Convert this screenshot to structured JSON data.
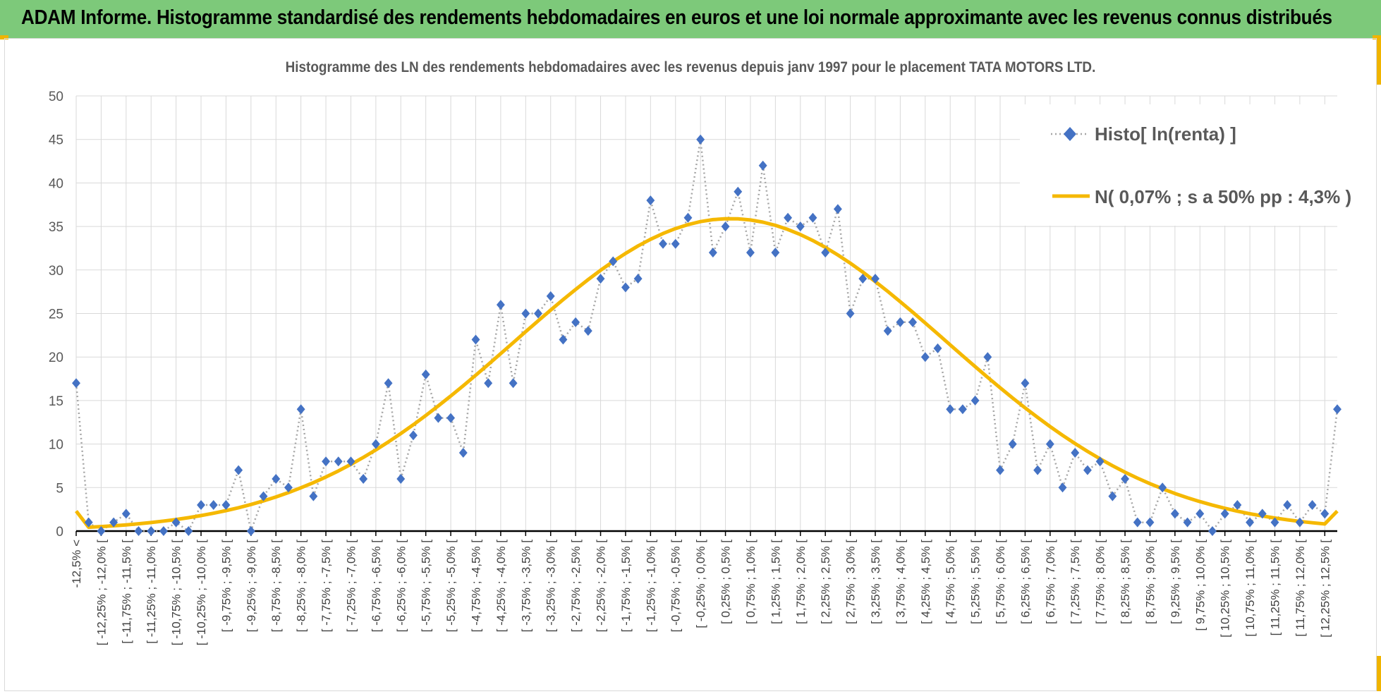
{
  "banner": {
    "title": "ADAM Informe. Histogramme standardisé des rendements hebdomadaires en euros et une loi normale approximante avec les revenus connus distribués"
  },
  "colors": {
    "banner_bg": "#7dc97a",
    "accent_corner": "#f0b400",
    "histo_marker": "#4472c4",
    "histo_line": "#a6a6a6",
    "normal_curve": "#f5b800",
    "grid": "#d9d9d9"
  },
  "chart_data": {
    "type": "line",
    "title": "Histogramme des LN des rendements hebdomadaires avec les revenus depuis janv 1997 pour le placement TATA MOTORS LTD.",
    "xlabel": "",
    "ylabel": "",
    "ylim": [
      0,
      50
    ],
    "yticks": [
      0,
      5,
      10,
      15,
      20,
      25,
      30,
      35,
      40,
      45,
      50
    ],
    "grid": true,
    "legend_position": "top-right",
    "x_labels_shown": [
      "-12,5% <",
      "[ -12,25% ; -12,0% [",
      "[ -11,75% ; -11,5% [",
      "[ -11,25% ; -11,0% [",
      "[ -10,75% ; -10,5% [",
      "[ -10,25% ; -10,0% [",
      "[ -9,75% ; -9,5% [",
      "[ -9,25% ; -9,0% [",
      "[ -8,75% ; -8,5% [",
      "[ -8,25% ; -8,0% [",
      "[ -7,75% ; -7,5% [",
      "[ -7,25% ; -7,0% [",
      "[ -6,75% ; -6,5% [",
      "[ -6,25% ; -6,0% [",
      "[ -5,75% ; -5,5% [",
      "[ -5,25% ; -5,0% [",
      "[ -4,75% ; -4,5% [",
      "[ -4,25% ; -4,0% [",
      "[ -3,75% ; -3,5% [",
      "[ -3,25% ; -3,0% [",
      "[ -2,75% ; -2,5% [",
      "[ -2,25% ; -2,0% [",
      "[ -1,75% ; -1,5% [",
      "[ -1,25% ; -1,0% [",
      "[ -0,75% ; -0,5% [",
      "[ -0,25% ; 0,0% [",
      "[ 0,25% ; 0,5% [",
      "[ 0,75% ; 1,0% [",
      "[ 1,25% ; 1,5% [",
      "[ 1,75% ; 2,0% [",
      "[ 2,25% ; 2,5% [",
      "[ 2,75% ; 3,0% [",
      "[ 3,25% ; 3,5% [",
      "[ 3,75% ; 4,0% [",
      "[ 4,25% ; 4,5% [",
      "[ 4,75% ; 5,0% [",
      "[ 5,25% ; 5,5% [",
      "[ 5,75% ; 6,0% [",
      "[ 6,25% ; 6,5% [",
      "[ 6,75% ; 7,0% [",
      "[ 7,25% ; 7,5% [",
      "[ 7,75% ; 8,0% [",
      "[ 8,25% ; 8,5% [",
      "[ 8,75% ; 9,0% [",
      "[ 9,25% ; 9,5% [",
      "[ 9,75% ; 10,0% [",
      "[ 10,25% ; 10,5% [",
      "[ 10,75% ; 11,0% [",
      "[ 11,25% ; 11,5% [",
      "[ 11,75% ; 12,0% [",
      "[ 12,25% ; 12,5% ["
    ],
    "series": [
      {
        "name": "Histo[ ln(renta) ]",
        "style": "dotted-line-diamond-markers",
        "values": [
          17,
          1,
          0,
          1,
          2,
          0,
          0,
          0,
          1,
          0,
          3,
          3,
          3,
          7,
          0,
          4,
          6,
          5,
          14,
          4,
          8,
          8,
          8,
          6,
          10,
          17,
          6,
          11,
          18,
          13,
          13,
          9,
          22,
          17,
          26,
          17,
          25,
          25,
          27,
          22,
          24,
          23,
          29,
          31,
          28,
          29,
          38,
          33,
          33,
          36,
          45,
          32,
          35,
          39,
          32,
          42,
          32,
          36,
          35,
          36,
          32,
          37,
          25,
          29,
          29,
          23,
          24,
          24,
          20,
          21,
          14,
          14,
          15,
          20,
          7,
          10,
          17,
          7,
          10,
          5,
          9,
          7,
          8,
          4,
          6,
          1,
          1,
          5,
          2,
          1,
          2,
          0,
          2,
          3,
          1,
          2,
          1,
          3,
          1,
          3,
          2,
          14
        ]
      },
      {
        "name": "N( 0,07% ; s a 50% pp : 4,3% )",
        "style": "solid-thick-line",
        "mean": 0.07,
        "sd": 4.3,
        "peak_value": 35.9,
        "edge_value": 2.3
      }
    ]
  }
}
